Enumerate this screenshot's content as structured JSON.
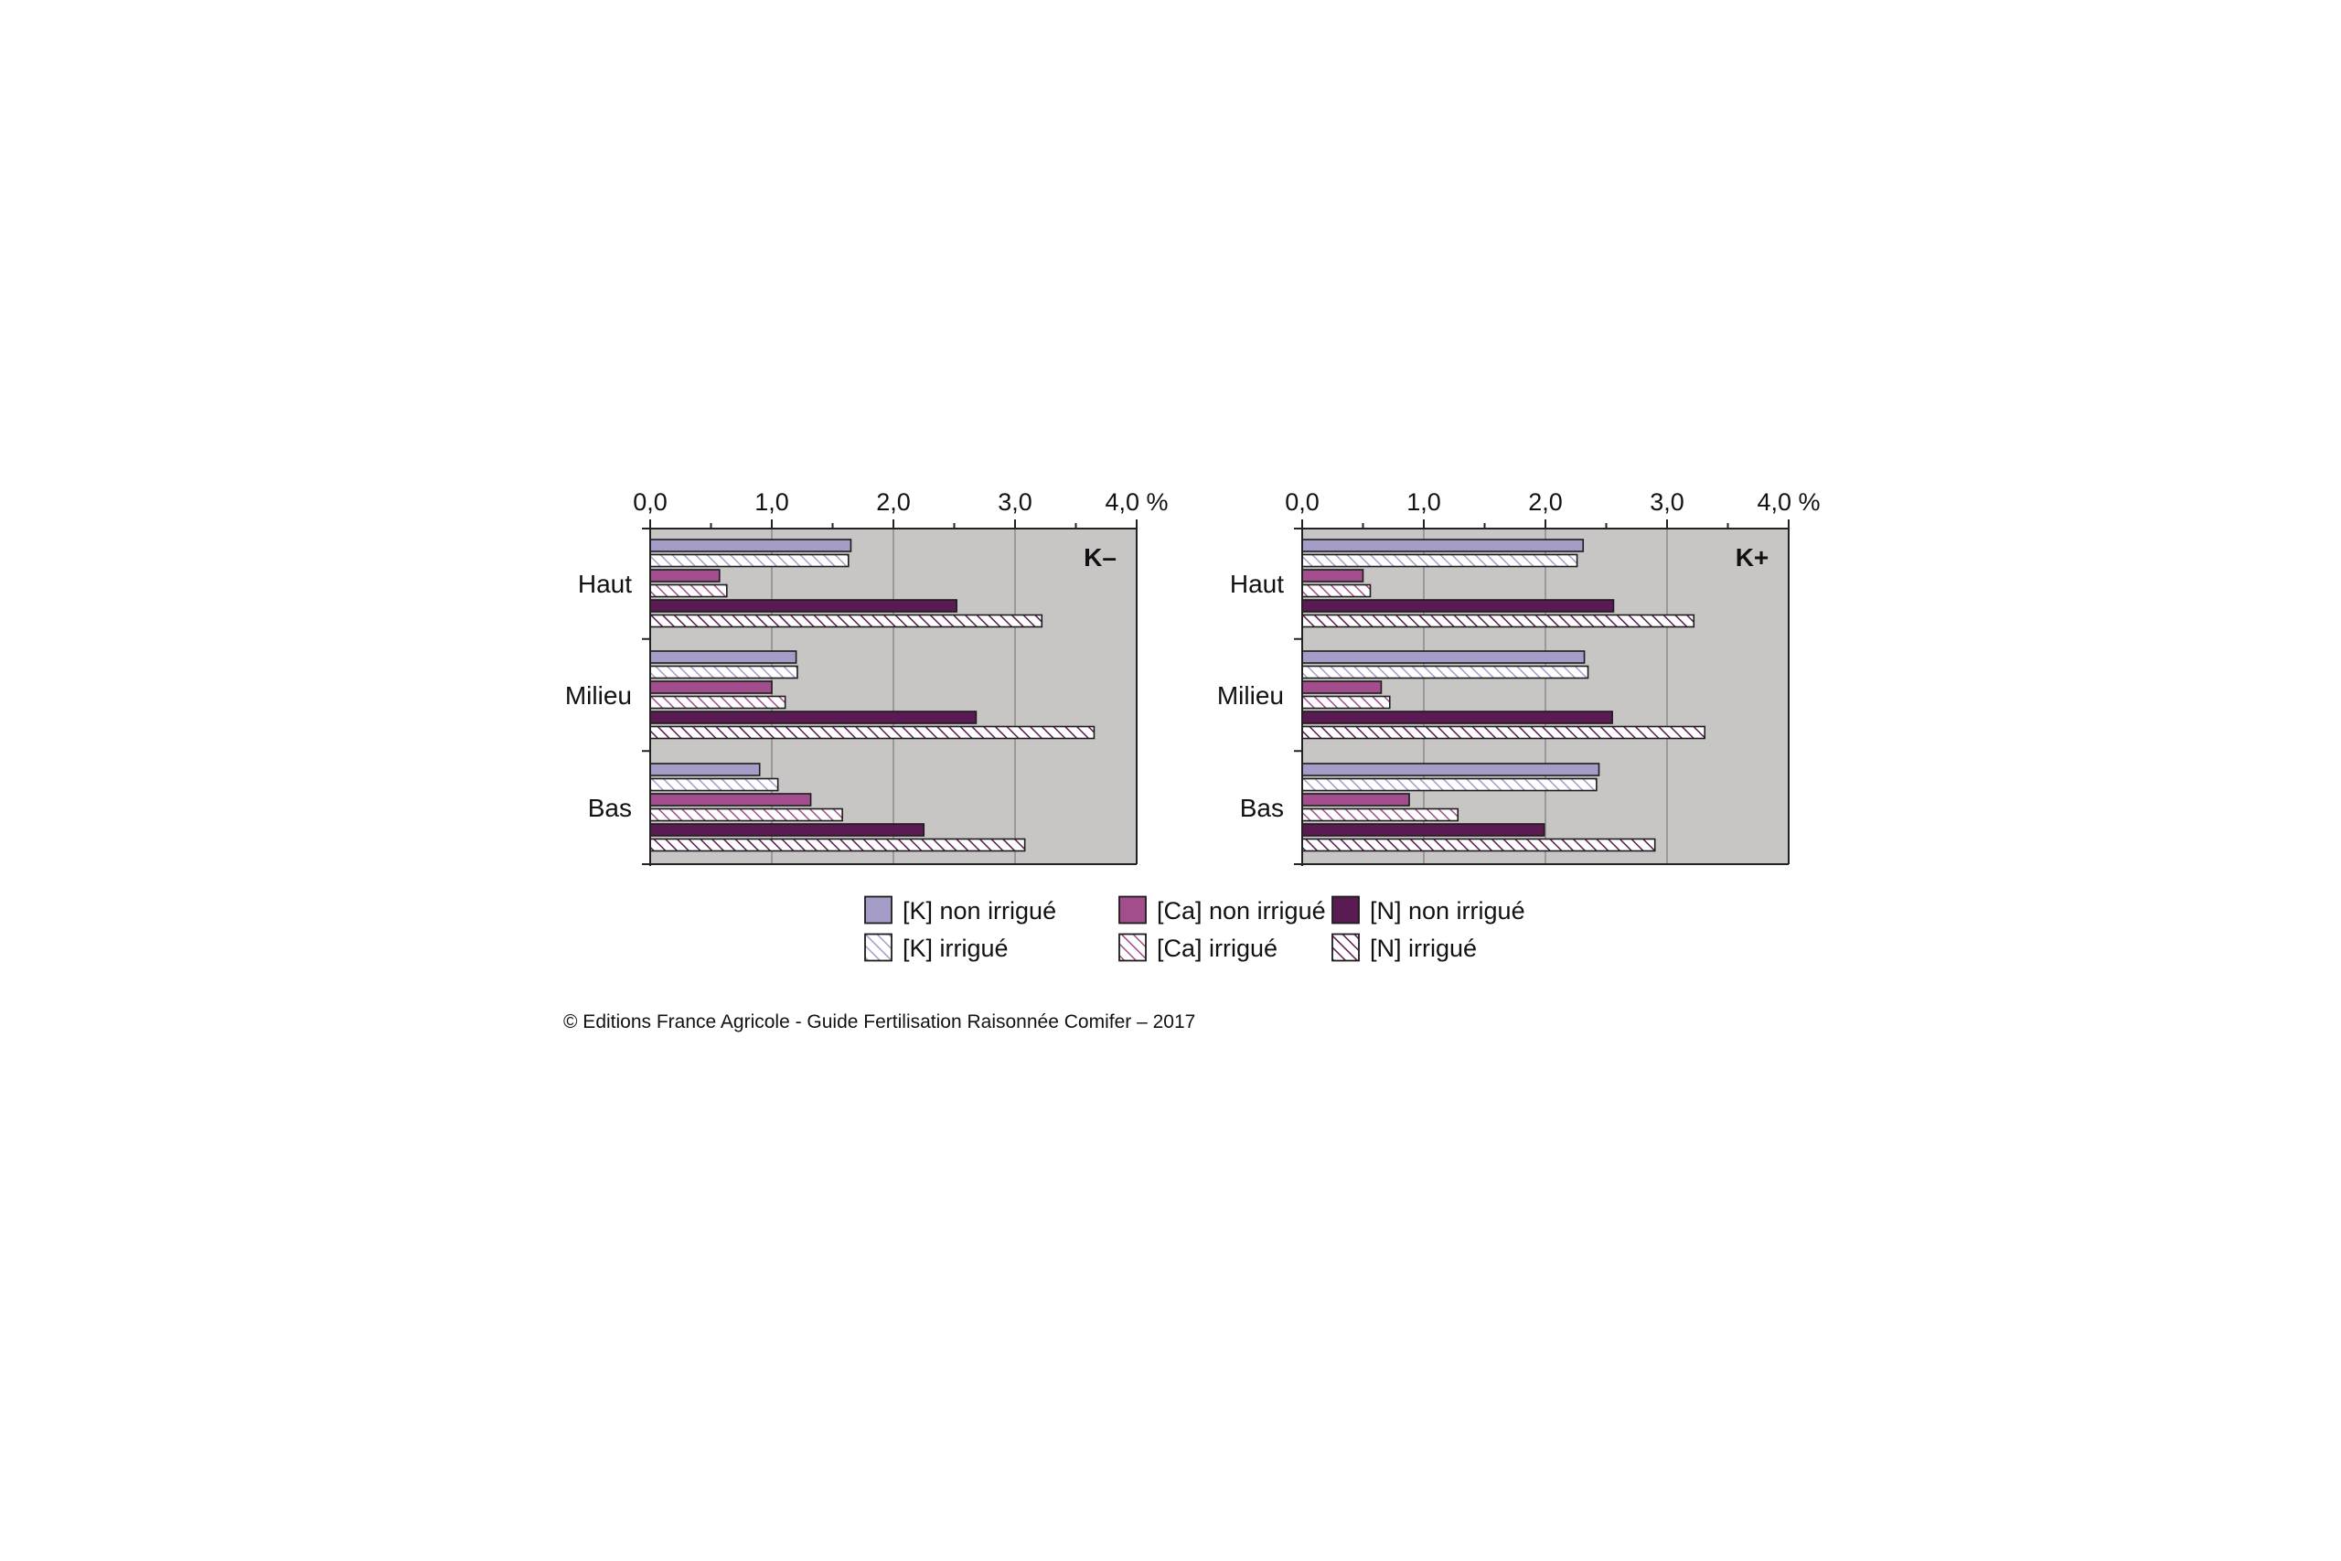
{
  "chart_data": [
    {
      "type": "bar",
      "orientation": "horizontal",
      "panel_label": "K–",
      "categories": [
        "Haut",
        "Milieu",
        "Bas"
      ],
      "unit": "%",
      "xlim": [
        0,
        4
      ],
      "x_ticks": [
        "0,0",
        "1,0",
        "2,0",
        "3,0",
        "4,0"
      ],
      "grid": true,
      "series": [
        {
          "name": "[K] non irrigué",
          "values": [
            1.65,
            1.2,
            0.9
          ]
        },
        {
          "name": "[K] irrigué",
          "values": [
            1.63,
            1.21,
            1.05
          ]
        },
        {
          "name": "[Ca] non irrigué",
          "values": [
            0.57,
            1.0,
            1.32
          ]
        },
        {
          "name": "[Ca] irrigué",
          "values": [
            0.63,
            1.11,
            1.58
          ]
        },
        {
          "name": "[N] non irrigué",
          "values": [
            2.52,
            2.68,
            2.25
          ]
        },
        {
          "name": "[N] irrigué",
          "values": [
            3.22,
            3.65,
            3.08
          ]
        }
      ]
    },
    {
      "type": "bar",
      "orientation": "horizontal",
      "panel_label": "K+",
      "categories": [
        "Haut",
        "Milieu",
        "Bas"
      ],
      "unit": "%",
      "xlim": [
        0,
        4
      ],
      "x_ticks": [
        "0,0",
        "1,0",
        "2,0",
        "3,0",
        "4,0"
      ],
      "grid": true,
      "series": [
        {
          "name": "[K] non irrigué",
          "values": [
            2.31,
            2.32,
            2.44
          ]
        },
        {
          "name": "[K] irrigué",
          "values": [
            2.26,
            2.35,
            2.42
          ]
        },
        {
          "name": "[Ca] non irrigué",
          "values": [
            0.5,
            0.65,
            0.88
          ]
        },
        {
          "name": "[Ca] irrigué",
          "values": [
            0.56,
            0.72,
            1.28
          ]
        },
        {
          "name": "[N] non irrigué",
          "values": [
            2.56,
            2.55,
            1.99
          ]
        },
        {
          "name": "[N] irrigué",
          "values": [
            3.22,
            3.31,
            2.9
          ]
        }
      ]
    }
  ],
  "legend": {
    "placement": "bottom",
    "items": [
      {
        "label": "[K] non irrigué",
        "color": "#a59dc8",
        "hatched": false
      },
      {
        "label": "[K] irrigué",
        "color": "#a59dc8",
        "hatched": true
      },
      {
        "label": "[Ca] non irrigué",
        "color": "#a24d8c",
        "hatched": false
      },
      {
        "label": "[Ca] irrigué",
        "color": "#a24d8c",
        "hatched": true
      },
      {
        "label": "[N] non irrigué",
        "color": "#5a1a52",
        "hatched": false
      },
      {
        "label": "[N] irrigué",
        "color": "#5a1a52",
        "hatched": true
      }
    ]
  },
  "colors": {
    "plot_background": "#c8c5c5",
    "gridline": "#8c8a8a",
    "bar_outline": "#1c1c1c",
    "k": "#a59dc8",
    "ca": "#a24d8c",
    "n": "#5a1a52"
  },
  "credit": "© Editions France Agricole - Guide Fertilisation Raisonnée Comifer – 2017"
}
